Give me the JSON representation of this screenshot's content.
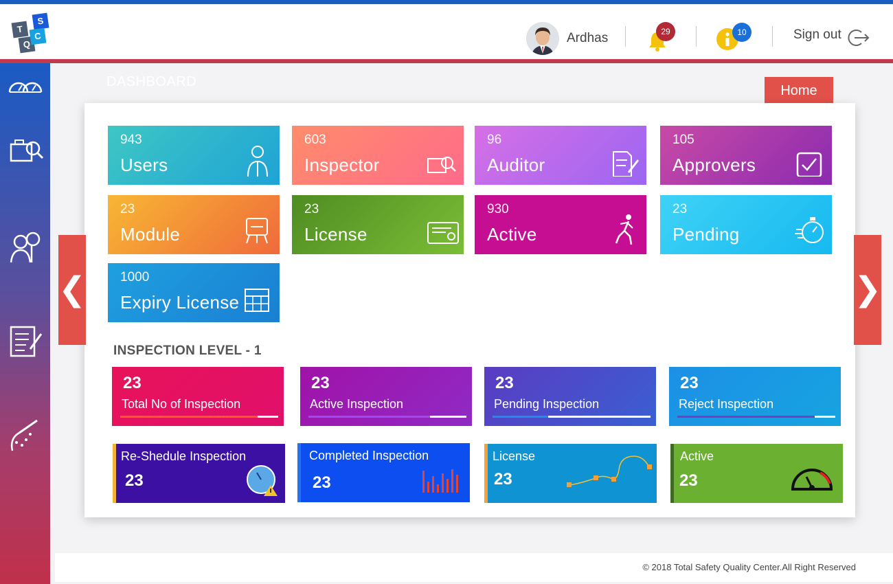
{
  "header": {
    "logo_letters": [
      "T",
      "S",
      "Q",
      "C"
    ],
    "user_name": "Ardhas",
    "notifications_count": "29",
    "info_count": "10",
    "signout_label": "Sign out"
  },
  "breadcrumb": "DASHBOARD",
  "home_label": "Home",
  "nav": {
    "prev": "❮",
    "next": "❯"
  },
  "sidebar": {
    "items": [
      {
        "icon": "speedometer-icon"
      },
      {
        "icon": "inspection-search-icon"
      },
      {
        "icon": "inspector-user-icon"
      },
      {
        "icon": "checklist-icon"
      },
      {
        "icon": "sprayer-icon"
      }
    ]
  },
  "tiles": [
    {
      "count": "943",
      "label": "Users",
      "icon": "user-icon",
      "gradient": [
        "#3ec7c4",
        "#1fa3d6"
      ]
    },
    {
      "count": "603",
      "label": "Inspector",
      "icon": "inspect-icon",
      "gradient": [
        "#ff8c6b",
        "#ff6b8a"
      ]
    },
    {
      "count": "96",
      "label": "Auditor",
      "icon": "document-edit-icon",
      "gradient": [
        "#d76fe6",
        "#9b66f2"
      ]
    },
    {
      "count": "105",
      "label": "Approvers",
      "icon": "checkbox-icon",
      "gradient": [
        "#c84aa6",
        "#8b2bb0"
      ]
    },
    {
      "count": "23",
      "label": "Module",
      "icon": "module-icon",
      "gradient": [
        "#f7b733",
        "#f06a3b"
      ]
    },
    {
      "count": "23",
      "label": "License",
      "icon": "certificate-icon",
      "gradient": [
        "#4f8c22",
        "#7bbd36"
      ]
    },
    {
      "count": "930",
      "label": "Active",
      "icon": "runner-icon",
      "gradient": [
        "#c60e92",
        "#c60e92"
      ]
    },
    {
      "count": "23",
      "label": "Pending",
      "icon": "stopwatch-icon",
      "gradient": [
        "#3fd2f6",
        "#16b9f0"
      ]
    },
    {
      "count": "1000",
      "label": "Expiry License",
      "icon": "calendar-icon",
      "gradient": [
        "#1fa0e0",
        "#1a7fd2"
      ]
    }
  ],
  "inspection": {
    "title": "INSPECTION LEVEL - 1",
    "top": [
      {
        "count": "23",
        "label": "Total No of Inspection",
        "progress": 0.87,
        "bar_color": "#ff5a1f",
        "gradient": [
          "#e8125a",
          "#e0106a"
        ]
      },
      {
        "count": "23",
        "label": "Active Inspection",
        "progress": 0.77,
        "bar_color": "#9a4cf0",
        "gradient": [
          "#a012a8",
          "#8f2ac4"
        ]
      },
      {
        "count": "23",
        "label": "Pending Inspection",
        "progress": 0.35,
        "bar_color": "#1a8fe8",
        "gradient": [
          "#5a3cc2",
          "#3a5fd2"
        ]
      },
      {
        "count": "23",
        "label": "Reject Inspection",
        "progress": 0.87,
        "bar_color": "#7d3ac2",
        "gradient": [
          "#1c90e6",
          "#17a3e0"
        ]
      }
    ],
    "bottom": [
      {
        "label": "Re-Shedule Inspection",
        "count": "23",
        "icon": "clock-warning-icon",
        "bg": "#3b10a2",
        "accent": "#f2b234"
      },
      {
        "label": "Completed Inspection",
        "count": "23",
        "icon": "bar-chart-icon",
        "bg": "#0c4ef0",
        "accent": "#2a6ff0"
      },
      {
        "label": "License",
        "count": "23",
        "icon": "line-chart-icon",
        "bg": "#1093d2",
        "accent": "#f2a13a"
      },
      {
        "label": "Active",
        "count": "23",
        "icon": "gauge-icon",
        "bg": "#6bb030",
        "accent": "#3e6a22"
      }
    ]
  },
  "footer": "© 2018 Total Safety Quality Center.All Right Reserved"
}
